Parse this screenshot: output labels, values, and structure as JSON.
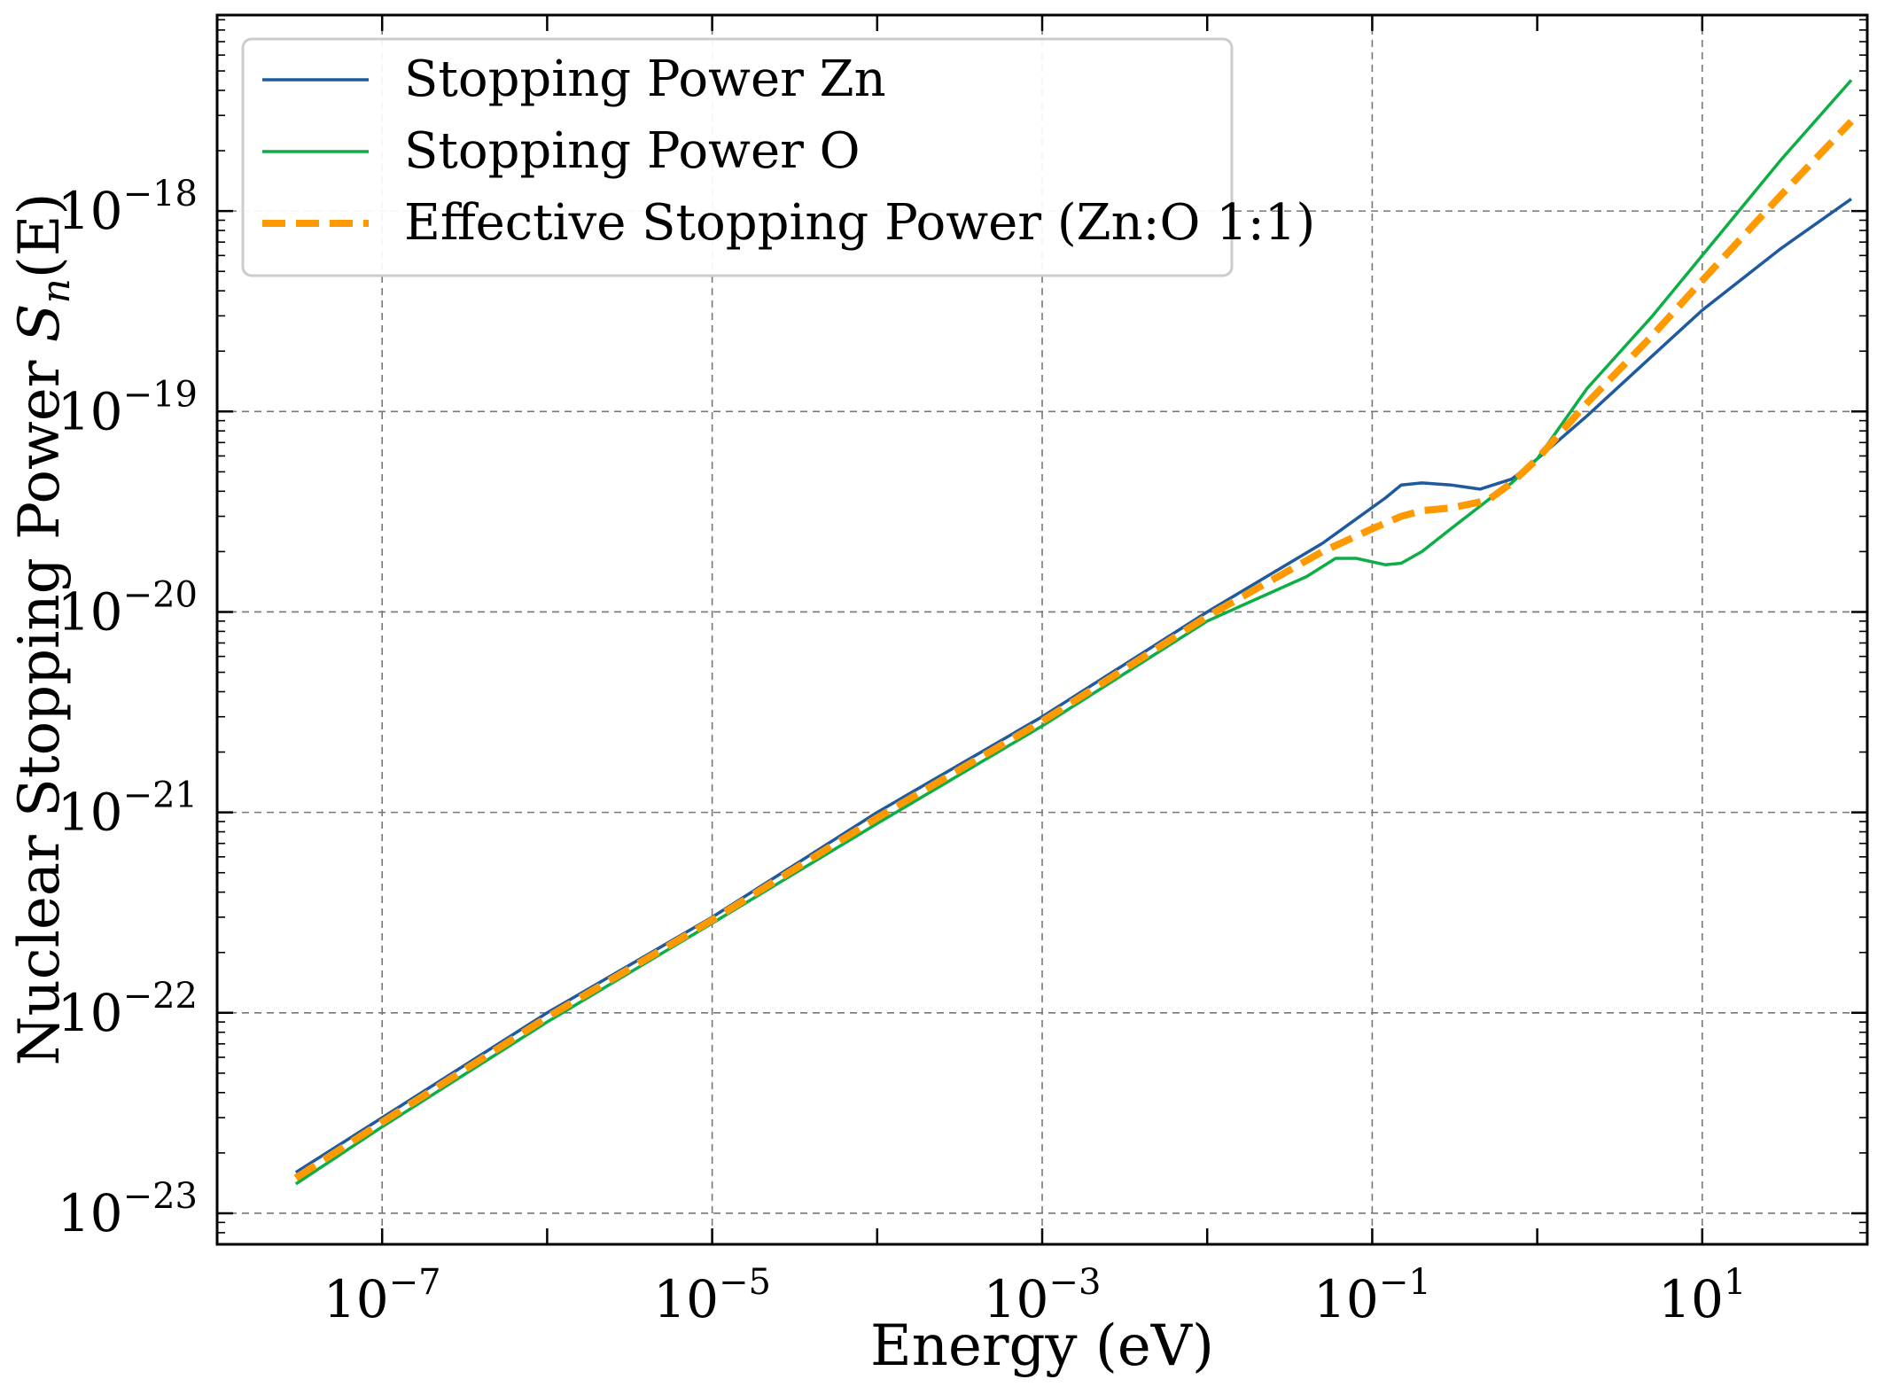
{
  "chart_data": {
    "type": "line",
    "xscale": "log",
    "yscale": "log",
    "xlabel": "Energy (eV)",
    "ylabel": "Nuclear Stopping Power S_n(E)",
    "ylabel_main": "Nuclear Stopping Power ",
    "ylabel_symbol": "S",
    "ylabel_sub": "n",
    "ylabel_arg": "(E)",
    "xlim": [
      1e-08,
      100.0
    ],
    "ylim": [
      7e-24,
      9.5e-18
    ],
    "x_ticks": [
      {
        "base": "10",
        "exp": "−7",
        "value": 1e-07
      },
      {
        "base": "10",
        "exp": "−5",
        "value": 1e-05
      },
      {
        "base": "10",
        "exp": "−3",
        "value": 0.001
      },
      {
        "base": "10",
        "exp": "−1",
        "value": 0.1
      },
      {
        "base": "10",
        "exp": "1",
        "value": 10
      }
    ],
    "y_ticks": [
      {
        "base": "10",
        "exp": "−23",
        "value": 1e-23
      },
      {
        "base": "10",
        "exp": "−22",
        "value": 1e-22
      },
      {
        "base": "10",
        "exp": "−21",
        "value": 1e-21
      },
      {
        "base": "10",
        "exp": "−20",
        "value": 1e-20
      },
      {
        "base": "10",
        "exp": "−19",
        "value": 1e-19
      },
      {
        "base": "10",
        "exp": "−18",
        "value": 1e-18
      }
    ],
    "grid": true,
    "legend_position": "top-left",
    "series": [
      {
        "name": "Stopping Power Zn",
        "color": "#1f5a9e",
        "style": "solid",
        "x": [
          3e-08,
          1e-07,
          1e-06,
          1e-05,
          0.0001,
          0.001,
          0.01,
          0.05,
          0.12,
          0.15,
          0.2,
          0.3,
          0.45,
          0.7,
          1.0,
          2.0,
          5.0,
          10,
          30,
          80
        ],
        "y": [
          1.6e-23,
          3e-23,
          1e-22,
          3e-22,
          1e-21,
          3e-21,
          1e-20,
          2.2e-20,
          3.7e-20,
          4.3e-20,
          4.4e-20,
          4.3e-20,
          4.1e-20,
          4.6e-20,
          5.8e-20,
          9.5e-20,
          1.9e-19,
          3.2e-19,
          6.5e-19,
          1.15e-18
        ]
      },
      {
        "name": "Stopping Power O",
        "color": "#0eae46",
        "style": "solid",
        "x": [
          3e-08,
          1e-07,
          1e-06,
          1e-05,
          0.0001,
          0.001,
          0.01,
          0.04,
          0.06,
          0.08,
          0.12,
          0.15,
          0.2,
          0.3,
          0.5,
          0.7,
          1.0,
          2.0,
          5.0,
          10,
          30,
          80
        ],
        "y": [
          1.4e-23,
          2.7e-23,
          9e-23,
          2.8e-22,
          8.8e-22,
          2.7e-21,
          9e-21,
          1.5e-20,
          1.85e-20,
          1.85e-20,
          1.72e-20,
          1.75e-20,
          2e-20,
          2.6e-20,
          3.6e-20,
          4.4e-20,
          5.8e-20,
          1.3e-19,
          3e-19,
          6e-19,
          1.8e-18,
          4.5e-18
        ]
      },
      {
        "name": "Effective Stopping Power (Zn:O 1:1)",
        "color": "#ff9900",
        "style": "dashed",
        "x": [
          3e-08,
          1e-07,
          1e-06,
          1e-05,
          0.0001,
          0.001,
          0.01,
          0.05,
          0.1,
          0.15,
          0.2,
          0.3,
          0.5,
          0.7,
          1.0,
          2.0,
          5.0,
          10,
          30,
          80
        ],
        "y": [
          1.5e-23,
          2.85e-23,
          9.5e-23,
          2.9e-22,
          9.4e-22,
          2.85e-21,
          9.5e-21,
          2e-20,
          2.6e-20,
          3e-20,
          3.2e-20,
          3.3e-20,
          3.6e-20,
          4.4e-20,
          5.8e-20,
          1.1e-19,
          2.4e-19,
          4.5e-19,
          1.2e-18,
          2.8e-18
        ]
      }
    ]
  }
}
